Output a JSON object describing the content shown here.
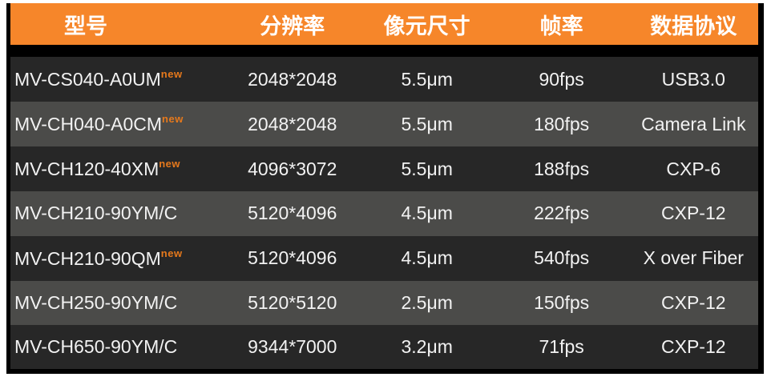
{
  "chart_data": {
    "type": "table",
    "columns": [
      "型号",
      "分辨率",
      "像元尺寸",
      "帧率",
      "数据协议"
    ],
    "rows": [
      {
        "model": "MV-CS040-A0UM",
        "badge": "new",
        "resolution": "2048*2048",
        "pixel_size": "5.5μm",
        "frame_rate": "90fps",
        "protocol": "USB3.0"
      },
      {
        "model": "MV-CH040-A0CM",
        "badge": "new",
        "resolution": "2048*2048",
        "pixel_size": "5.5μm",
        "frame_rate": "180fps",
        "protocol": "Camera Link"
      },
      {
        "model": "MV-CH120-40XM",
        "badge": "new",
        "resolution": "4096*3072",
        "pixel_size": "5.5μm",
        "frame_rate": "188fps",
        "protocol": "CXP-6"
      },
      {
        "model": "MV-CH210-90YM/C",
        "badge": "",
        "resolution": "5120*4096",
        "pixel_size": "4.5μm",
        "frame_rate": "222fps",
        "protocol": "CXP-12"
      },
      {
        "model": "MV-CH210-90QM",
        "badge": "new",
        "resolution": "5120*4096",
        "pixel_size": "4.5μm",
        "frame_rate": "540fps",
        "protocol": "X over Fiber"
      },
      {
        "model": "MV-CH250-90YM/C",
        "badge": "",
        "resolution": "5120*5120",
        "pixel_size": "2.5μm",
        "frame_rate": "150fps",
        "protocol": "CXP-12"
      },
      {
        "model": "MV-CH650-90YM/C",
        "badge": "",
        "resolution": "9344*7000",
        "pixel_size": "3.2μm",
        "frame_rate": "71fps",
        "protocol": "CXP-12"
      }
    ],
    "layout": {
      "header_position": "top",
      "row_striping": "alternating dark/light, first row dark",
      "model_column_alignment": "left",
      "data_columns_alignment": "center"
    }
  },
  "colors": {
    "page_bg": "#FFFFFF",
    "table_bg": "#000000",
    "header_bg": "#F6862A",
    "header_text": "#FFFFFF",
    "row_dark": "#272727",
    "row_light": "#4B4B49",
    "row_text": "#F2F2F2",
    "new_badge": "#E6791C"
  }
}
